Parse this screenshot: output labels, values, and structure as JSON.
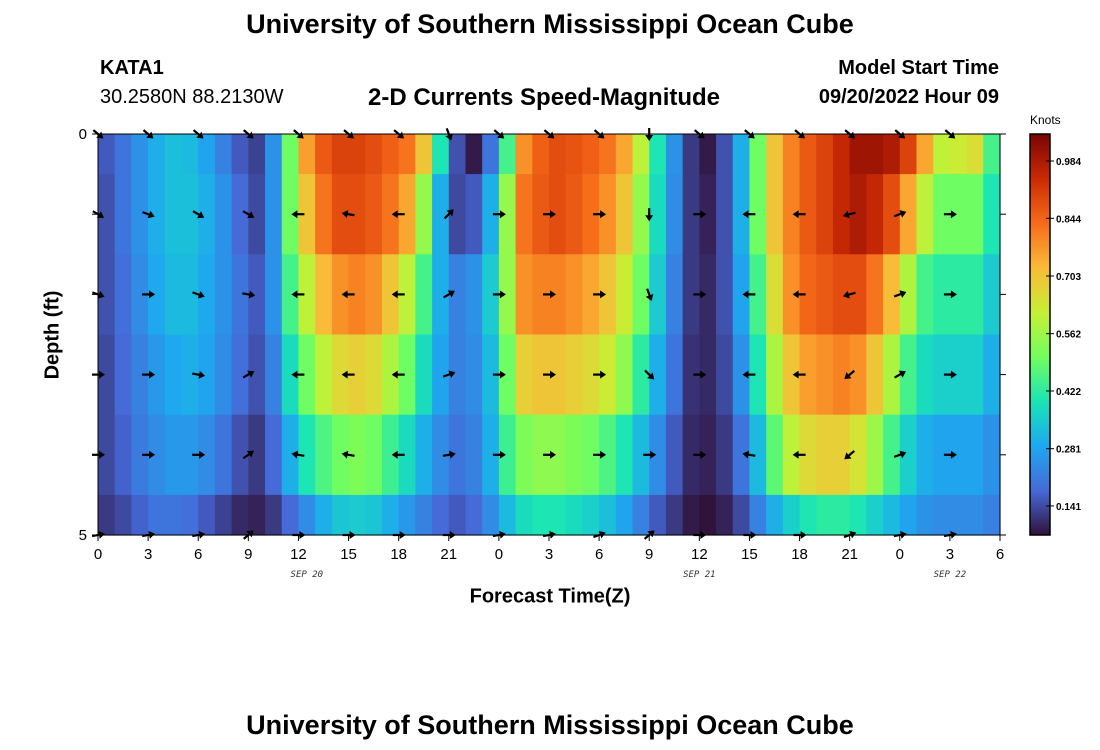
{
  "header": {
    "title": "University of Southern Mississippi Ocean Cube",
    "station_id": "KATA1",
    "coordinates": "30.2580N  88.2130W",
    "plot_title": "2-D Currents Speed-Magnitude",
    "model_start_label": "Model Start Time",
    "model_start_value": "09/20/2022 Hour 09"
  },
  "footer": {
    "title": "University of Southern Mississippi Ocean Cube"
  },
  "colors": {
    "colormap": [
      "#30123b",
      "#4669d8",
      "#1ea8f0",
      "#1ae4b6",
      "#72fe5e",
      "#c8ef34",
      "#faba39",
      "#f66b19",
      "#ca2a04",
      "#7a0403"
    ]
  },
  "chart_data": {
    "type": "heatmap",
    "title": "2-D Currents Speed-Magnitude",
    "xlabel": "Forecast Time(Z)",
    "ylabel": "Depth (ft)",
    "colorbar_label": "Knots",
    "xlim": [
      0,
      54
    ],
    "ylim": [
      0,
      5
    ],
    "x_ticks": [
      0,
      3,
      6,
      9,
      12,
      15,
      18,
      21,
      24,
      27,
      30,
      33,
      36,
      39,
      42,
      45,
      48,
      51,
      54
    ],
    "x_tick_labels": [
      "0",
      "3",
      "6",
      "9",
      "12",
      "15",
      "18",
      "21",
      "0",
      "3",
      "6",
      "9",
      "12",
      "15",
      "18",
      "21",
      "0",
      "3",
      "6"
    ],
    "y_ticks": [
      0,
      5
    ],
    "y_tick_labels": [
      "0",
      "5"
    ],
    "date_labels": [
      {
        "hour": 12.5,
        "text": "SEP 20"
      },
      {
        "hour": 36,
        "text": "SEP 21"
      },
      {
        "hour": 51,
        "text": "SEP 22"
      }
    ],
    "colorbar": {
      "min": 0.07,
      "max": 1.05,
      "tick_values": [
        0.141,
        0.281,
        0.422,
        0.562,
        0.703,
        0.844,
        0.984
      ]
    },
    "speed_field": {
      "hours": [
        0,
        1,
        2,
        3,
        4,
        5,
        6,
        7,
        8,
        9,
        10,
        11,
        12,
        13,
        14,
        15,
        16,
        17,
        18,
        19,
        20,
        21,
        22,
        23,
        24,
        25,
        26,
        27,
        28,
        29,
        30,
        31,
        32,
        33,
        34,
        35,
        36,
        37,
        38,
        39,
        40,
        41,
        42,
        43,
        44,
        45,
        46,
        47,
        48,
        49,
        50,
        51,
        52,
        53
      ],
      "depth_bins": [
        0,
        1,
        2,
        3,
        4,
        5
      ],
      "values": [
        [
          0.16,
          0.2,
          0.25,
          0.3,
          0.33,
          0.32,
          0.28,
          0.22,
          0.16,
          0.13,
          0.25,
          0.5,
          0.76,
          0.86,
          0.9,
          0.9,
          0.88,
          0.85,
          0.82,
          0.7,
          0.4,
          0.15,
          0.08,
          0.2,
          0.45,
          0.78,
          0.85,
          0.88,
          0.87,
          0.85,
          0.82,
          0.75,
          0.6,
          0.4,
          0.25,
          0.12,
          0.08,
          0.15,
          0.3,
          0.5,
          0.7,
          0.8,
          0.86,
          0.9,
          0.95,
          1.0,
          1.0,
          0.98,
          0.9,
          0.75,
          0.6,
          0.62,
          0.65,
          0.45
        ],
        [
          0.15,
          0.2,
          0.25,
          0.3,
          0.33,
          0.33,
          0.3,
          0.25,
          0.18,
          0.14,
          0.25,
          0.5,
          0.7,
          0.82,
          0.88,
          0.88,
          0.86,
          0.82,
          0.75,
          0.55,
          0.3,
          0.14,
          0.16,
          0.3,
          0.55,
          0.82,
          0.86,
          0.88,
          0.86,
          0.83,
          0.78,
          0.7,
          0.55,
          0.38,
          0.24,
          0.12,
          0.09,
          0.15,
          0.3,
          0.5,
          0.7,
          0.8,
          0.86,
          0.9,
          0.95,
          0.98,
          0.95,
          0.88,
          0.75,
          0.6,
          0.5,
          0.5,
          0.5,
          0.4
        ],
        [
          0.15,
          0.19,
          0.24,
          0.29,
          0.32,
          0.32,
          0.29,
          0.25,
          0.2,
          0.16,
          0.25,
          0.45,
          0.6,
          0.72,
          0.78,
          0.8,
          0.78,
          0.7,
          0.6,
          0.45,
          0.3,
          0.22,
          0.25,
          0.35,
          0.55,
          0.78,
          0.8,
          0.8,
          0.78,
          0.75,
          0.7,
          0.62,
          0.5,
          0.35,
          0.22,
          0.12,
          0.1,
          0.15,
          0.28,
          0.45,
          0.65,
          0.78,
          0.84,
          0.86,
          0.88,
          0.88,
          0.82,
          0.72,
          0.58,
          0.45,
          0.42,
          0.42,
          0.42,
          0.35
        ],
        [
          0.14,
          0.18,
          0.22,
          0.26,
          0.29,
          0.3,
          0.28,
          0.24,
          0.19,
          0.15,
          0.22,
          0.38,
          0.5,
          0.6,
          0.66,
          0.68,
          0.66,
          0.58,
          0.5,
          0.38,
          0.28,
          0.22,
          0.24,
          0.32,
          0.5,
          0.68,
          0.7,
          0.7,
          0.68,
          0.66,
          0.62,
          0.54,
          0.42,
          0.3,
          0.2,
          0.11,
          0.1,
          0.14,
          0.25,
          0.4,
          0.58,
          0.7,
          0.76,
          0.78,
          0.8,
          0.78,
          0.7,
          0.58,
          0.45,
          0.38,
          0.36,
          0.36,
          0.36,
          0.3
        ],
        [
          0.14,
          0.17,
          0.21,
          0.24,
          0.26,
          0.26,
          0.24,
          0.2,
          0.15,
          0.12,
          0.18,
          0.3,
          0.4,
          0.46,
          0.5,
          0.52,
          0.5,
          0.44,
          0.38,
          0.3,
          0.24,
          0.2,
          0.22,
          0.3,
          0.44,
          0.52,
          0.54,
          0.54,
          0.52,
          0.5,
          0.46,
          0.4,
          0.32,
          0.24,
          0.16,
          0.1,
          0.09,
          0.12,
          0.2,
          0.32,
          0.48,
          0.6,
          0.66,
          0.68,
          0.68,
          0.64,
          0.56,
          0.45,
          0.36,
          0.3,
          0.28,
          0.28,
          0.28,
          0.25
        ],
        [
          0.12,
          0.14,
          0.17,
          0.2,
          0.2,
          0.19,
          0.16,
          0.13,
          0.1,
          0.09,
          0.12,
          0.18,
          0.24,
          0.3,
          0.34,
          0.35,
          0.34,
          0.3,
          0.26,
          0.22,
          0.18,
          0.16,
          0.18,
          0.24,
          0.32,
          0.38,
          0.4,
          0.4,
          0.38,
          0.36,
          0.33,
          0.28,
          0.22,
          0.16,
          0.12,
          0.08,
          0.07,
          0.09,
          0.14,
          0.22,
          0.3,
          0.36,
          0.4,
          0.42,
          0.42,
          0.4,
          0.36,
          0.32,
          0.28,
          0.25,
          0.24,
          0.24,
          0.24,
          0.22
        ]
      ]
    },
    "vectors": {
      "hours": [
        0,
        3,
        6,
        9,
        12,
        15,
        18,
        21,
        24,
        27,
        30,
        33,
        36,
        39,
        42,
        45,
        48,
        51
      ],
      "depths": [
        0,
        1,
        2,
        3,
        4,
        5
      ],
      "directions_deg": [
        [
          -40,
          -40,
          -40,
          -40,
          -40,
          -40,
          -40,
          -70,
          -40,
          -40,
          -40,
          -90,
          -40,
          -40,
          -40,
          -40,
          -40,
          -40
        ],
        [
          -30,
          -20,
          -30,
          -30,
          180,
          170,
          180,
          45,
          0,
          0,
          0,
          -90,
          0,
          180,
          180,
          -165,
          20,
          0
        ],
        [
          -20,
          0,
          -20,
          -10,
          180,
          180,
          180,
          30,
          0,
          0,
          0,
          -70,
          0,
          180,
          180,
          -165,
          20,
          0
        ],
        [
          0,
          0,
          -10,
          30,
          180,
          180,
          180,
          20,
          0,
          0,
          0,
          -45,
          0,
          180,
          180,
          -140,
          30,
          0
        ],
        [
          0,
          0,
          0,
          35,
          170,
          170,
          180,
          10,
          0,
          0,
          0,
          0,
          0,
          170,
          180,
          -140,
          20,
          0
        ],
        [
          10,
          10,
          10,
          40,
          0,
          0,
          0,
          0,
          10,
          10,
          20,
          40,
          0,
          0,
          0,
          20,
          10,
          10
        ]
      ]
    }
  }
}
